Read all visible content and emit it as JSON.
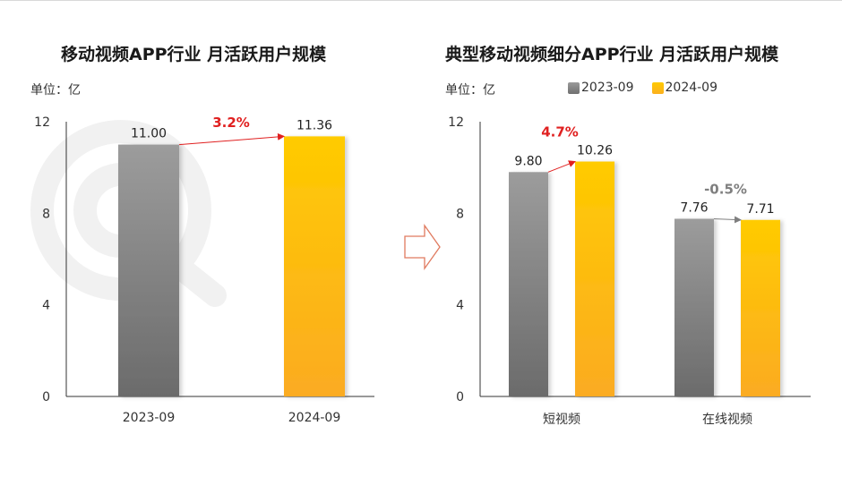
{
  "chart_data": [
    {
      "type": "bar",
      "title": "移动视频APP行业 月活跃用户规模",
      "unit_label": "单位：亿",
      "categories": [
        "2023-09",
        "2024-09"
      ],
      "values": [
        11.0,
        11.36
      ],
      "value_labels": [
        "11.00",
        "11.36"
      ],
      "growth_label": "3.2%",
      "ylim": [
        0,
        12
      ],
      "yticks": [
        "0",
        "4",
        "8",
        "12"
      ],
      "grid": false
    },
    {
      "type": "bar",
      "title": "典型移动视频细分APP行业 月活跃用户规模",
      "unit_label": "单位：亿",
      "categories": [
        "短视频",
        "在线视频"
      ],
      "series": [
        {
          "name": "2023-09",
          "values": [
            9.8,
            7.76
          ],
          "labels": [
            "9.80",
            "7.76"
          ]
        },
        {
          "name": "2024-09",
          "values": [
            10.26,
            7.71
          ],
          "labels": [
            "10.26",
            "7.71"
          ]
        }
      ],
      "growth_labels": [
        "4.7%",
        "-0.5%"
      ],
      "ylim": [
        0,
        12
      ],
      "yticks": [
        "0",
        "4",
        "8",
        "12"
      ],
      "legend": "top",
      "grid": false
    }
  ],
  "colors": {
    "series_2023": "#8c8c8c",
    "series_2024": "#ffc000",
    "growth_positive": "#e02020",
    "growth_negative": "#7f7f7f"
  }
}
